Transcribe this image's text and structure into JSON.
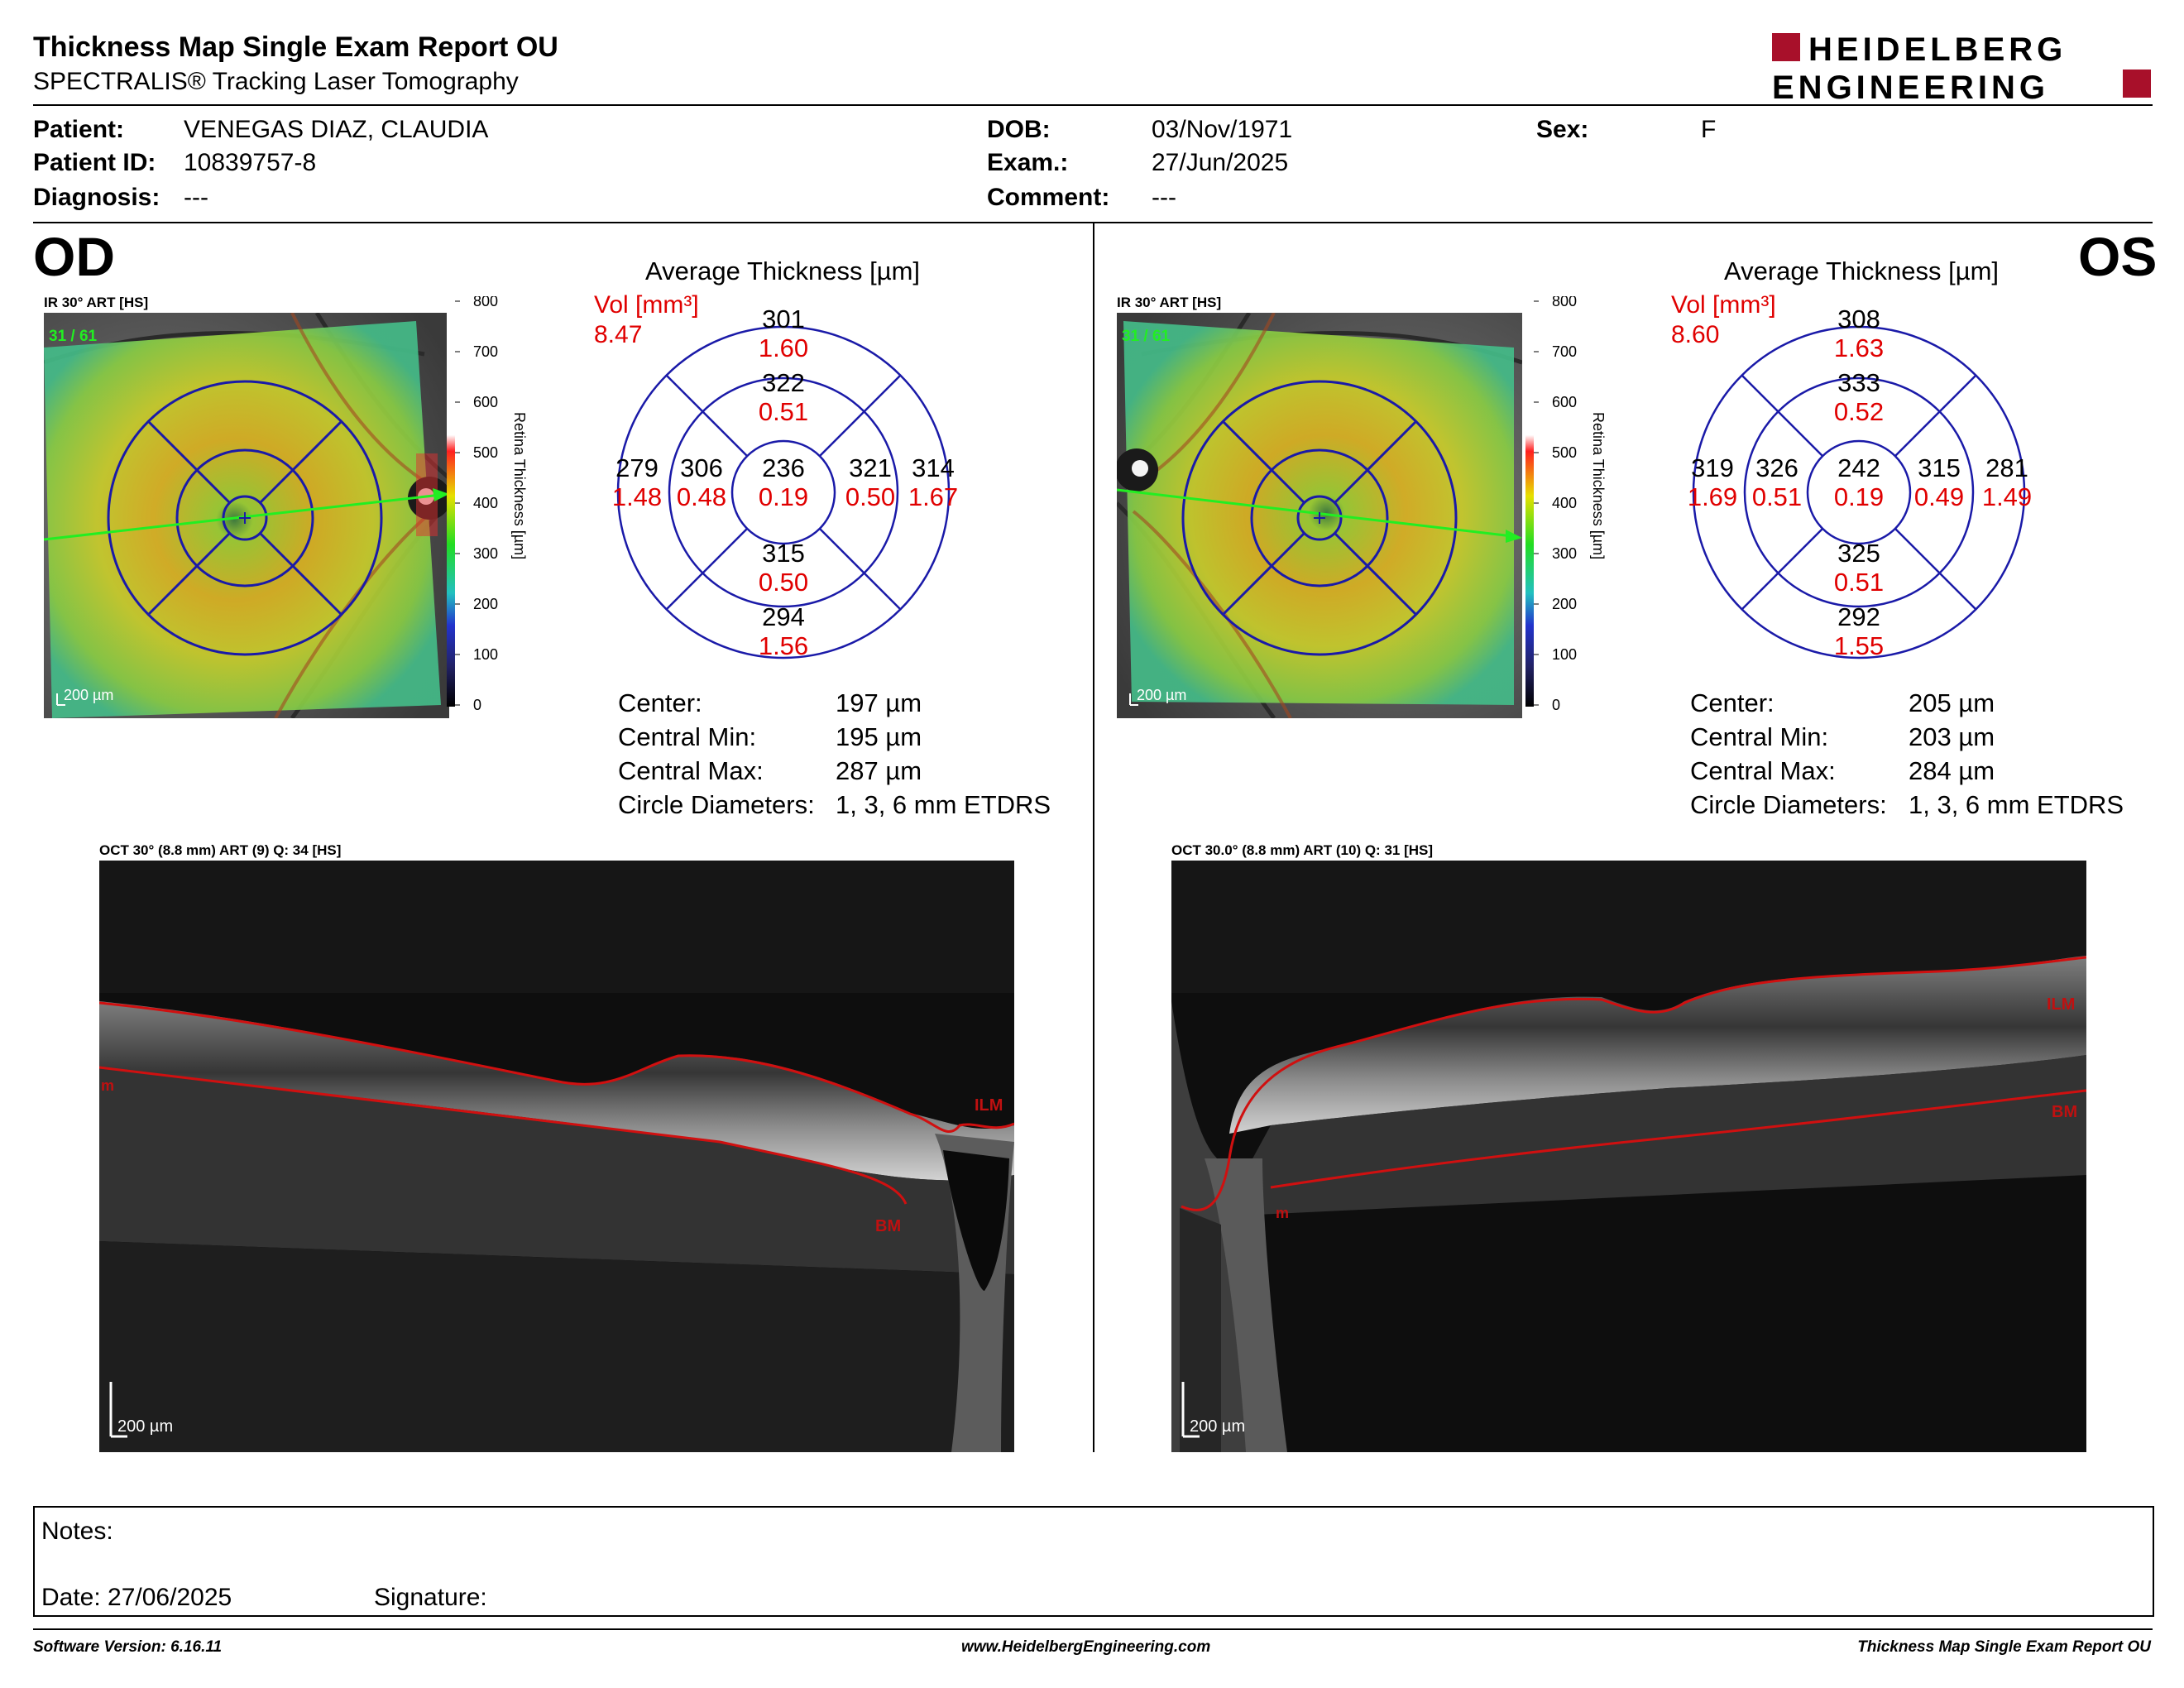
{
  "header": {
    "title": "Thickness Map Single Exam Report OU",
    "subtitle": "SPECTRALIS® Tracking Laser Tomography",
    "logo_line1": "HEIDELBERG",
    "logo_line2": "ENGINEERING"
  },
  "patient": {
    "patient_label": "Patient:",
    "patient_value": "VENEGAS DIAZ, CLAUDIA",
    "id_label": "Patient ID:",
    "id_value": "10839757-8",
    "diagnosis_label": "Diagnosis:",
    "diagnosis_value": "---",
    "dob_label": "DOB:",
    "dob_value": "03/Nov/1971",
    "exam_label": "Exam.:",
    "exam_value": "27/Jun/2025",
    "comment_label": "Comment:",
    "comment_value": "---",
    "sex_label": "Sex:",
    "sex_value": "F"
  },
  "od": {
    "eye": "OD",
    "ir_label": "IR 30° ART [HS]",
    "frame_count": "31 / 61",
    "scale": "200 µm",
    "colorbar_ticks": [
      "800",
      "700",
      "600",
      "500",
      "400",
      "300",
      "200",
      "100",
      "0"
    ],
    "colorbar_label": "Retina  Thickness [µm]",
    "avg_title": "Average Thickness [µm]",
    "vol_label": "Vol [mm³]",
    "vol_total": "8.47",
    "sectors": {
      "outer_sup": {
        "t": "301",
        "v": "1.60"
      },
      "inner_sup": {
        "t": "322",
        "v": "0.51"
      },
      "outer_left": {
        "t": "279",
        "v": "1.48"
      },
      "inner_left": {
        "t": "306",
        "v": "0.48"
      },
      "center": {
        "t": "236",
        "v": "0.19"
      },
      "inner_right": {
        "t": "321",
        "v": "0.50"
      },
      "outer_right": {
        "t": "314",
        "v": "1.67"
      },
      "inner_inf": {
        "t": "315",
        "v": "0.50"
      },
      "outer_inf": {
        "t": "294",
        "v": "1.56"
      }
    },
    "stats": [
      {
        "label": "Center:",
        "value": "197 µm"
      },
      {
        "label": "Central Min:",
        "value": "195 µm"
      },
      {
        "label": "Central Max:",
        "value": "287 µm"
      },
      {
        "label": "Circle Diameters:",
        "value": "1, 3, 6 mm ETDRS"
      }
    ],
    "oct_label": "OCT 30° (8.8 mm) ART (9) Q: 34 [HS]",
    "oct_scale": "200 µm",
    "layer_labels": {
      "ilm": "ILM",
      "bm": "BM",
      "m": "m"
    }
  },
  "os": {
    "eye": "OS",
    "ir_label": "IR 30° ART [HS]",
    "frame_count": "31 / 61",
    "scale": "200 µm",
    "colorbar_ticks": [
      "800",
      "700",
      "600",
      "500",
      "400",
      "300",
      "200",
      "100",
      "0"
    ],
    "colorbar_label": "Retina  Thickness [µm]",
    "avg_title": "Average Thickness [µm]",
    "vol_label": "Vol [mm³]",
    "vol_total": "8.60",
    "sectors": {
      "outer_sup": {
        "t": "308",
        "v": "1.63"
      },
      "inner_sup": {
        "t": "333",
        "v": "0.52"
      },
      "outer_left": {
        "t": "319",
        "v": "1.69"
      },
      "inner_left": {
        "t": "326",
        "v": "0.51"
      },
      "center": {
        "t": "242",
        "v": "0.19"
      },
      "inner_right": {
        "t": "315",
        "v": "0.49"
      },
      "outer_right": {
        "t": "281",
        "v": "1.49"
      },
      "inner_inf": {
        "t": "325",
        "v": "0.51"
      },
      "outer_inf": {
        "t": "292",
        "v": "1.55"
      }
    },
    "stats": [
      {
        "label": "Center:",
        "value": "205 µm"
      },
      {
        "label": "Central Min:",
        "value": "203 µm"
      },
      {
        "label": "Central Max:",
        "value": "284 µm"
      },
      {
        "label": "Circle Diameters:",
        "value": "1, 3, 6 mm ETDRS"
      }
    ],
    "oct_label": "OCT 30.0° (8.8 mm) ART (10) Q: 31 [HS]",
    "oct_scale": "200 µm",
    "layer_labels": {
      "ilm": "ILM",
      "bm": "BM",
      "m": "m"
    }
  },
  "notes": {
    "notes_label": "Notes:",
    "date_label": "Date: 27/06/2025",
    "signature_label": "Signature:"
  },
  "footer": {
    "software": "Software Version: 6.16.11",
    "website": "www.HeidelbergEngineering.com",
    "report": "Thickness Map Single Exam Report OU"
  },
  "colors": {
    "sector_lines": "#1a1aa8",
    "volume_text": "#e00000",
    "segmentation": "#d01010",
    "scan_line": "#22ee22",
    "logo": "#a8102a"
  }
}
